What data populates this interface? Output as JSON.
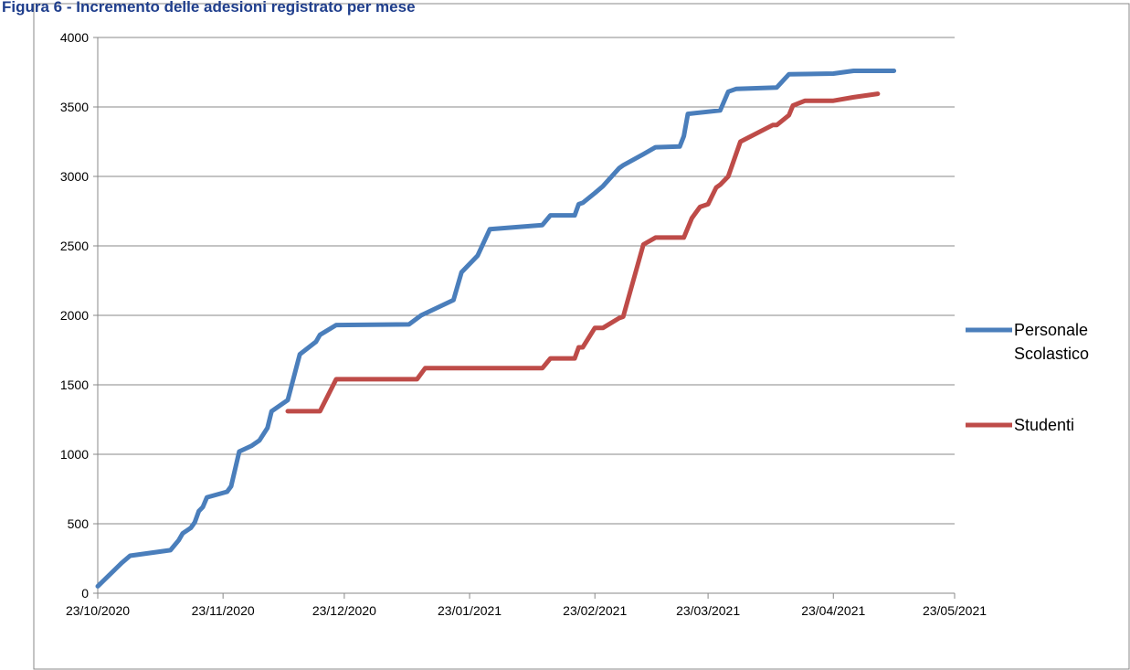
{
  "chart_data": {
    "type": "line",
    "title": "Figura 6 - Incremento delle adesioni registrato per mese",
    "xlim": [
      "2020-10-23",
      "2021-05-23"
    ],
    "xticks": [
      {
        "value": "2020-10-23",
        "label": "23/10/2020"
      },
      {
        "value": "2020-11-23",
        "label": "23/11/2020"
      },
      {
        "value": "2020-12-23",
        "label": "23/12/2020"
      },
      {
        "value": "2021-01-23",
        "label": "23/01/2021"
      },
      {
        "value": "2021-02-23",
        "label": "23/02/2021"
      },
      {
        "value": "2021-03-23",
        "label": "23/03/2021"
      },
      {
        "value": "2021-04-23",
        "label": "23/04/2021"
      },
      {
        "value": "2021-05-23",
        "label": "23/05/2021"
      }
    ],
    "ylim": [
      0,
      4000
    ],
    "yticks": [
      0,
      500,
      1000,
      1500,
      2000,
      2500,
      3000,
      3500,
      4000
    ],
    "grid": true,
    "legend": "right",
    "series": [
      {
        "name": "Personale Scolastico",
        "color": "#4a7ebb",
        "x": [
          "2020-10-23",
          "2020-10-29",
          "2020-10-31",
          "2020-11-10",
          "2020-11-12",
          "2020-11-13",
          "2020-11-15",
          "2020-11-16",
          "2020-11-17",
          "2020-11-18",
          "2020-11-19",
          "2020-11-24",
          "2020-11-25",
          "2020-11-27",
          "2020-11-30",
          "2020-12-02",
          "2020-12-04",
          "2020-12-05",
          "2020-12-09",
          "2020-12-12",
          "2020-12-16",
          "2020-12-17",
          "2020-12-21",
          "2021-01-08",
          "2021-01-11",
          "2021-01-19",
          "2021-01-21",
          "2021-01-25",
          "2021-01-28",
          "2021-02-10",
          "2021-02-12",
          "2021-02-18",
          "2021-02-19",
          "2021-02-20",
          "2021-02-23",
          "2021-02-25",
          "2021-03-01",
          "2021-03-02",
          "2021-03-07",
          "2021-03-10",
          "2021-03-16",
          "2021-03-17",
          "2021-03-18",
          "2021-03-26",
          "2021-03-28",
          "2021-03-30",
          "2021-04-09",
          "2021-04-12",
          "2021-04-23",
          "2021-04-28",
          "2021-05-08"
        ],
        "values": [
          50,
          220,
          270,
          310,
          380,
          430,
          470,
          510,
          590,
          620,
          690,
          730,
          770,
          1020,
          1060,
          1100,
          1190,
          1310,
          1390,
          1720,
          1810,
          1860,
          1930,
          1935,
          2000,
          2110,
          2310,
          2430,
          2620,
          2650,
          2720,
          2720,
          2800,
          2810,
          2880,
          2930,
          3060,
          3080,
          3160,
          3210,
          3215,
          3290,
          3450,
          3475,
          3610,
          3630,
          3640,
          3735,
          3740,
          3760,
          3760
        ]
      },
      {
        "name": "Studenti",
        "color": "#be4b48",
        "x": [
          "2020-12-09",
          "2020-12-17",
          "2020-12-21",
          "2021-01-10",
          "2021-01-12",
          "2021-02-10",
          "2021-02-12",
          "2021-02-18",
          "2021-02-19",
          "2021-02-20",
          "2021-02-23",
          "2021-02-25",
          "2021-03-01",
          "2021-03-02",
          "2021-03-07",
          "2021-03-10",
          "2021-03-17",
          "2021-03-19",
          "2021-03-21",
          "2021-03-23",
          "2021-03-25",
          "2021-03-26",
          "2021-03-28",
          "2021-03-31",
          "2021-04-08",
          "2021-04-09",
          "2021-04-12",
          "2021-04-13",
          "2021-04-16",
          "2021-04-23",
          "2021-04-28",
          "2021-05-04"
        ],
        "values": [
          1310,
          1310,
          1540,
          1540,
          1620,
          1620,
          1690,
          1690,
          1770,
          1770,
          1910,
          1910,
          1980,
          1990,
          2510,
          2560,
          2560,
          2700,
          2780,
          2800,
          2920,
          2940,
          3000,
          3250,
          3370,
          3370,
          3440,
          3510,
          3545,
          3545,
          3570,
          3595
        ]
      }
    ]
  }
}
